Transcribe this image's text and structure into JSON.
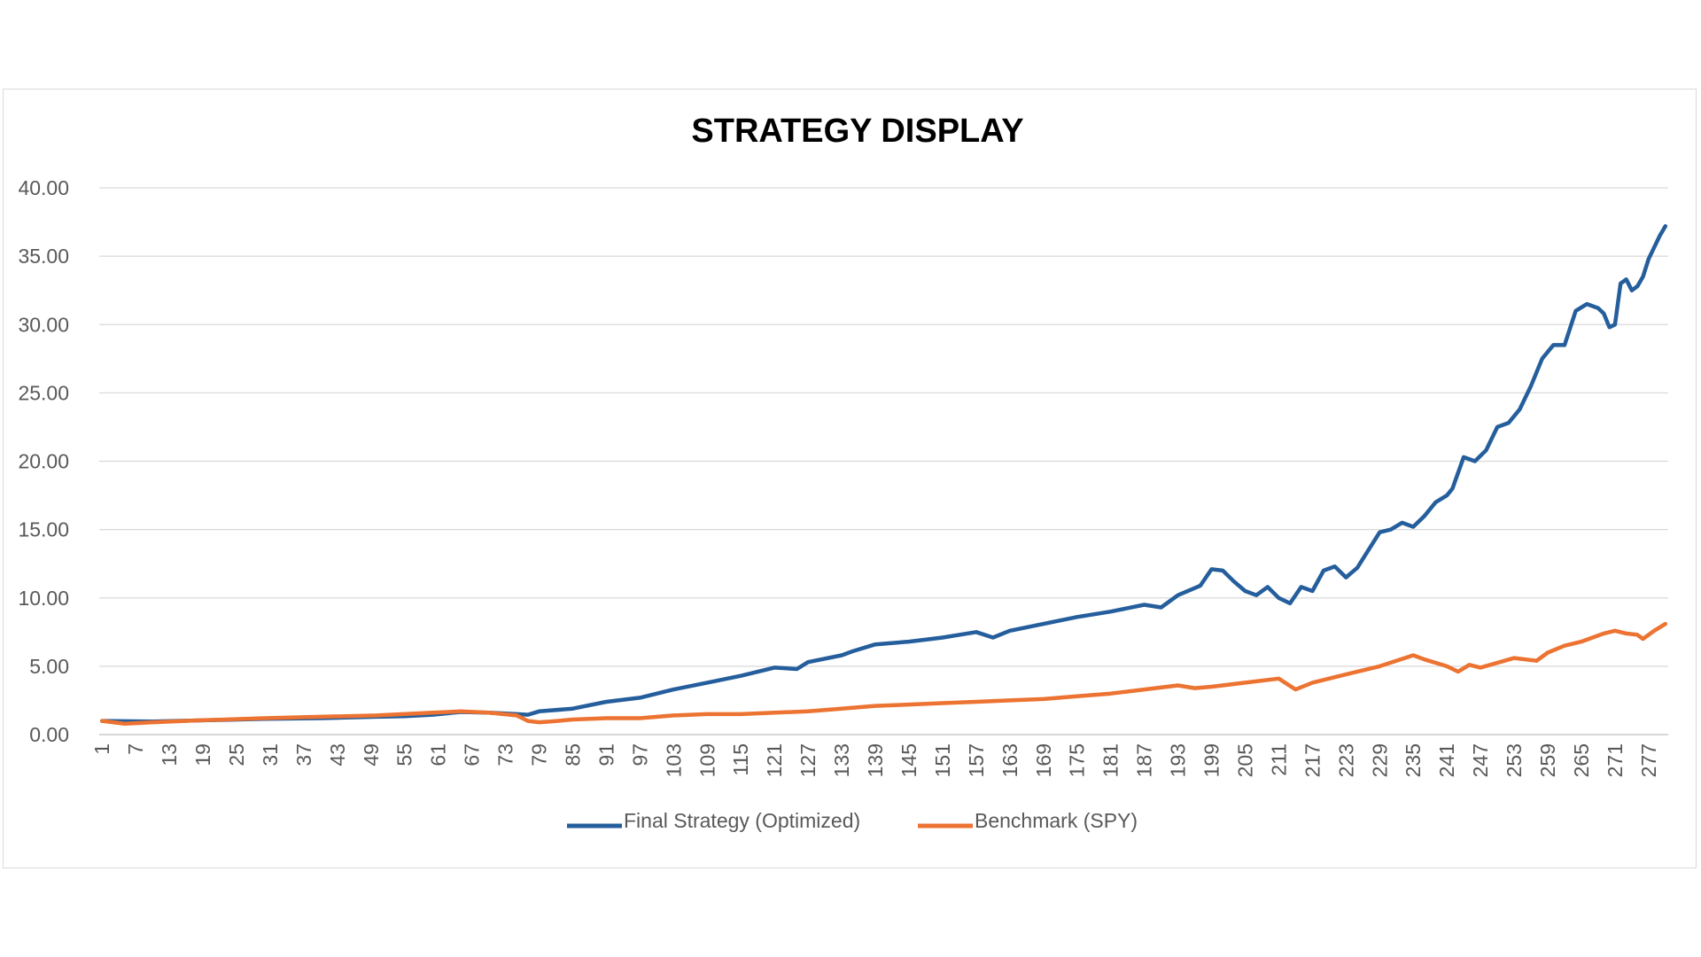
{
  "chart_data": {
    "type": "line",
    "title": "STRATEGY DISPLAY",
    "xlabel": "",
    "ylabel": "",
    "x": {
      "start": 1,
      "end": 280
    },
    "x_tick_labels": [
      "1",
      "7",
      "13",
      "19",
      "25",
      "31",
      "37",
      "43",
      "49",
      "55",
      "61",
      "67",
      "73",
      "79",
      "85",
      "91",
      "97",
      "103",
      "109",
      "115",
      "121",
      "127",
      "133",
      "139",
      "145",
      "151",
      "157",
      "163",
      "169",
      "175",
      "181",
      "187",
      "193",
      "199",
      "205",
      "211",
      "217",
      "223",
      "229",
      "235",
      "241",
      "247",
      "253",
      "259",
      "265",
      "271",
      "277"
    ],
    "y_tick_labels": [
      "0.00",
      "5.00",
      "10.00",
      "15.00",
      "20.00",
      "25.00",
      "30.00",
      "35.00",
      "40.00"
    ],
    "ylim": [
      0,
      40
    ],
    "grid": true,
    "legend_position": "bottom",
    "series": [
      {
        "name": "Final Strategy (Optimized)",
        "color": "#255e9c",
        "points": [
          [
            1,
            1.0
          ],
          [
            10,
            0.95
          ],
          [
            20,
            1.05
          ],
          [
            30,
            1.15
          ],
          [
            40,
            1.2
          ],
          [
            50,
            1.3
          ],
          [
            55,
            1.35
          ],
          [
            60,
            1.45
          ],
          [
            65,
            1.65
          ],
          [
            70,
            1.6
          ],
          [
            75,
            1.5
          ],
          [
            77,
            1.45
          ],
          [
            79,
            1.7
          ],
          [
            85,
            1.9
          ],
          [
            91,
            2.4
          ],
          [
            97,
            2.7
          ],
          [
            103,
            3.3
          ],
          [
            109,
            3.8
          ],
          [
            115,
            4.3
          ],
          [
            121,
            4.9
          ],
          [
            125,
            4.8
          ],
          [
            127,
            5.3
          ],
          [
            133,
            5.8
          ],
          [
            135,
            6.1
          ],
          [
            139,
            6.6
          ],
          [
            145,
            6.8
          ],
          [
            151,
            7.1
          ],
          [
            157,
            7.5
          ],
          [
            160,
            7.1
          ],
          [
            163,
            7.6
          ],
          [
            169,
            8.1
          ],
          [
            175,
            8.6
          ],
          [
            181,
            9.0
          ],
          [
            187,
            9.5
          ],
          [
            190,
            9.3
          ],
          [
            193,
            10.2
          ],
          [
            197,
            10.9
          ],
          [
            199,
            12.1
          ],
          [
            201,
            12.0
          ],
          [
            203,
            11.2
          ],
          [
            205,
            10.5
          ],
          [
            207,
            10.2
          ],
          [
            209,
            10.8
          ],
          [
            211,
            10.0
          ],
          [
            213,
            9.6
          ],
          [
            215,
            10.8
          ],
          [
            217,
            10.5
          ],
          [
            219,
            12.0
          ],
          [
            221,
            12.3
          ],
          [
            223,
            11.5
          ],
          [
            225,
            12.2
          ],
          [
            227,
            13.5
          ],
          [
            229,
            14.8
          ],
          [
            231,
            15.0
          ],
          [
            233,
            15.5
          ],
          [
            235,
            15.2
          ],
          [
            237,
            16.0
          ],
          [
            239,
            17.0
          ],
          [
            241,
            17.5
          ],
          [
            242,
            18.0
          ],
          [
            244,
            20.3
          ],
          [
            246,
            20.0
          ],
          [
            248,
            20.8
          ],
          [
            250,
            22.5
          ],
          [
            252,
            22.8
          ],
          [
            254,
            23.8
          ],
          [
            256,
            25.5
          ],
          [
            258,
            27.5
          ],
          [
            260,
            28.5
          ],
          [
            262,
            28.5
          ],
          [
            264,
            31.0
          ],
          [
            266,
            31.5
          ],
          [
            268,
            31.2
          ],
          [
            269,
            30.8
          ],
          [
            270,
            29.8
          ],
          [
            271,
            30.0
          ],
          [
            272,
            33.0
          ],
          [
            273,
            33.3
          ],
          [
            274,
            32.5
          ],
          [
            275,
            32.8
          ],
          [
            276,
            33.5
          ],
          [
            277,
            34.8
          ],
          [
            279,
            36.5
          ],
          [
            280,
            37.2
          ]
        ]
      },
      {
        "name": "Benchmark (SPY)",
        "color": "#ec7331",
        "points": [
          [
            1,
            1.0
          ],
          [
            5,
            0.8
          ],
          [
            10,
            0.9
          ],
          [
            19,
            1.05
          ],
          [
            30,
            1.2
          ],
          [
            40,
            1.3
          ],
          [
            50,
            1.4
          ],
          [
            60,
            1.6
          ],
          [
            65,
            1.7
          ],
          [
            70,
            1.6
          ],
          [
            75,
            1.4
          ],
          [
            77,
            1.0
          ],
          [
            79,
            0.9
          ],
          [
            81,
            0.95
          ],
          [
            85,
            1.1
          ],
          [
            91,
            1.2
          ],
          [
            97,
            1.2
          ],
          [
            103,
            1.4
          ],
          [
            109,
            1.5
          ],
          [
            115,
            1.5
          ],
          [
            121,
            1.6
          ],
          [
            127,
            1.7
          ],
          [
            133,
            1.9
          ],
          [
            139,
            2.1
          ],
          [
            145,
            2.2
          ],
          [
            151,
            2.3
          ],
          [
            157,
            2.4
          ],
          [
            163,
            2.5
          ],
          [
            169,
            2.6
          ],
          [
            175,
            2.8
          ],
          [
            181,
            3.0
          ],
          [
            187,
            3.3
          ],
          [
            193,
            3.6
          ],
          [
            196,
            3.4
          ],
          [
            199,
            3.5
          ],
          [
            205,
            3.8
          ],
          [
            211,
            4.1
          ],
          [
            214,
            3.3
          ],
          [
            217,
            3.8
          ],
          [
            223,
            4.4
          ],
          [
            229,
            5.0
          ],
          [
            235,
            5.8
          ],
          [
            237,
            5.5
          ],
          [
            241,
            5.0
          ],
          [
            243,
            4.6
          ],
          [
            245,
            5.1
          ],
          [
            247,
            4.9
          ],
          [
            253,
            5.6
          ],
          [
            257,
            5.4
          ],
          [
            259,
            6.0
          ],
          [
            262,
            6.5
          ],
          [
            265,
            6.8
          ],
          [
            267,
            7.1
          ],
          [
            269,
            7.4
          ],
          [
            271,
            7.6
          ],
          [
            273,
            7.4
          ],
          [
            275,
            7.3
          ],
          [
            276,
            7.0
          ],
          [
            278,
            7.6
          ],
          [
            280,
            8.1
          ]
        ]
      }
    ]
  }
}
